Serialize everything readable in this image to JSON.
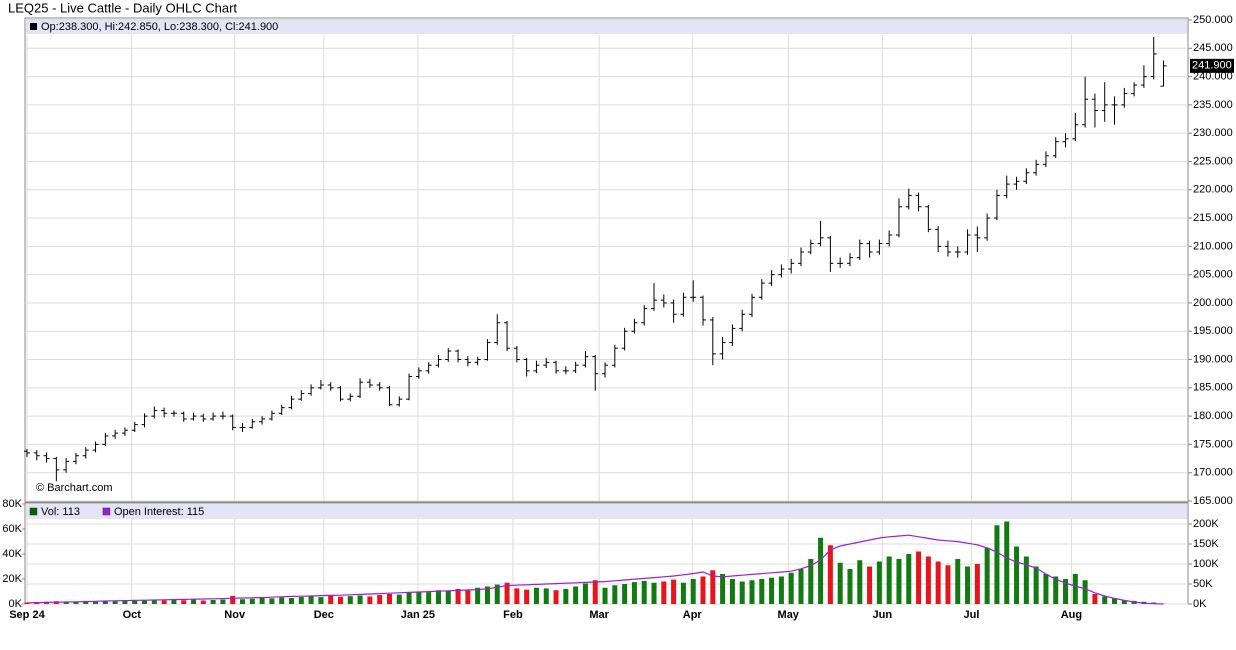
{
  "chart_data": [
    {
      "type": "ohlc",
      "title": "LEQ25 - Live Cattle - Daily OHLC Chart",
      "legend": "Op:238.300, Hi:242.850, Lo:238.300, Cl:241.900",
      "watermark": "© Barchart.com",
      "color": "#000000",
      "last_price": {
        "value": 241.9,
        "label": "241.900"
      },
      "xlim": [
        -0.2,
        118.5
      ],
      "xticks": [
        {
          "value": 0,
          "label": "Sep 24"
        },
        {
          "value": 10.7,
          "label": "Oct"
        },
        {
          "value": 21.2,
          "label": "Nov"
        },
        {
          "value": 30.3,
          "label": "Dec"
        },
        {
          "value": 39.9,
          "label": "Jan 25"
        },
        {
          "value": 49.6,
          "label": "Feb"
        },
        {
          "value": 58.4,
          "label": "Mar"
        },
        {
          "value": 67.9,
          "label": "Apr"
        },
        {
          "value": 77.7,
          "label": "May"
        },
        {
          "value": 87.3,
          "label": "Jun"
        },
        {
          "value": 96.4,
          "label": "Jul"
        },
        {
          "value": 106.6,
          "label": "Aug"
        }
      ],
      "ylim": [
        165,
        250
      ],
      "yticks": [
        {
          "value": 165,
          "label": "165.000"
        },
        {
          "value": 170,
          "label": "170.000"
        },
        {
          "value": 175,
          "label": "175.000"
        },
        {
          "value": 180,
          "label": "180.000"
        },
        {
          "value": 185,
          "label": "185.000"
        },
        {
          "value": 190,
          "label": "190.000"
        },
        {
          "value": 195,
          "label": "195.000"
        },
        {
          "value": 200,
          "label": "200.000"
        },
        {
          "value": 205,
          "label": "205.000"
        },
        {
          "value": 210,
          "label": "210.000"
        },
        {
          "value": 215,
          "label": "215.000"
        },
        {
          "value": 220,
          "label": "220.000"
        },
        {
          "value": 225,
          "label": "225.000"
        },
        {
          "value": 230,
          "label": "230.000"
        },
        {
          "value": 235,
          "label": "235.000"
        },
        {
          "value": 240,
          "label": "240.000"
        },
        {
          "value": 245,
          "label": "245.000"
        },
        {
          "value": 250,
          "label": "250.000"
        }
      ],
      "ohlc": [
        [
          173.8,
          174.2,
          172.8,
          173.5
        ],
        [
          173.5,
          174,
          172.2,
          173
        ],
        [
          173,
          173.6,
          171.8,
          172.5
        ],
        [
          172.5,
          172.8,
          168.5,
          170.5
        ],
        [
          170.5,
          172.6,
          170,
          172
        ],
        [
          172,
          173.5,
          171.5,
          173
        ],
        [
          173,
          174.5,
          172.5,
          174
        ],
        [
          174,
          175.5,
          173.6,
          175
        ],
        [
          175,
          177,
          174.7,
          176.5
        ],
        [
          176.5,
          177.6,
          176,
          177
        ],
        [
          177,
          178,
          176.5,
          177.5
        ],
        [
          177.5,
          179,
          177.2,
          178.5
        ],
        [
          178.5,
          180.5,
          178,
          180
        ],
        [
          180,
          181.7,
          179.6,
          181
        ],
        [
          181,
          181.5,
          179.8,
          180.5
        ],
        [
          180.5,
          181,
          179.9,
          180.5
        ],
        [
          180.5,
          180.8,
          179,
          179.5
        ],
        [
          179.5,
          180.6,
          179.2,
          180
        ],
        [
          180,
          180.4,
          179,
          179.5
        ],
        [
          179.5,
          180.6,
          179.2,
          180
        ],
        [
          180,
          180.8,
          179.4,
          180
        ],
        [
          180,
          180.3,
          177.5,
          178
        ],
        [
          178,
          178.8,
          177.2,
          178
        ],
        [
          178,
          179.5,
          177.8,
          179
        ],
        [
          179,
          180,
          178.5,
          179.5
        ],
        [
          179.5,
          181,
          179.2,
          180.5
        ],
        [
          180.5,
          182,
          180.2,
          181.5
        ],
        [
          181.5,
          183.6,
          181.2,
          183
        ],
        [
          183,
          184.6,
          182.7,
          184
        ],
        [
          184,
          185.6,
          183.6,
          185
        ],
        [
          185,
          186.4,
          184.7,
          185.5
        ],
        [
          185.5,
          186,
          184.5,
          185
        ],
        [
          185,
          185.3,
          182.6,
          183
        ],
        [
          183,
          184,
          182.6,
          183.5
        ],
        [
          183.5,
          186.7,
          183.2,
          186
        ],
        [
          186,
          186.6,
          185,
          185.5
        ],
        [
          185.5,
          186,
          184.5,
          185
        ],
        [
          185,
          185.3,
          181.8,
          182
        ],
        [
          182,
          183.5,
          181.7,
          183
        ],
        [
          183,
          187.5,
          182.8,
          187
        ],
        [
          187,
          188.6,
          186.6,
          188
        ],
        [
          188,
          189.5,
          187.5,
          189
        ],
        [
          189,
          190.8,
          188.6,
          190
        ],
        [
          190,
          192,
          189.6,
          191.5
        ],
        [
          191.5,
          191.8,
          189.5,
          190
        ],
        [
          190,
          190.6,
          188.8,
          189.5
        ],
        [
          189.5,
          190.5,
          189,
          190
        ],
        [
          190,
          193.6,
          189.8,
          193
        ],
        [
          193,
          198,
          192.6,
          196.5
        ],
        [
          196.5,
          196.8,
          191.5,
          192
        ],
        [
          192,
          192.4,
          189.5,
          190
        ],
        [
          190,
          190.3,
          187,
          188
        ],
        [
          188,
          189.8,
          187.6,
          189
        ],
        [
          189,
          190.3,
          188.5,
          189.5
        ],
        [
          189.5,
          189.8,
          187.5,
          188
        ],
        [
          188,
          188.8,
          187.4,
          188
        ],
        [
          188,
          189.6,
          187.6,
          189
        ],
        [
          189,
          191.5,
          188.6,
          190.5
        ],
        [
          190.5,
          190.8,
          184.5,
          187.5
        ],
        [
          187.5,
          189.5,
          186.8,
          189
        ],
        [
          189,
          192.6,
          188.6,
          192
        ],
        [
          192,
          195.6,
          191.6,
          195
        ],
        [
          195,
          197.2,
          194.6,
          196.5
        ],
        [
          196.5,
          199.6,
          196,
          199
        ],
        [
          199,
          203.5,
          198.6,
          200.5
        ],
        [
          200.5,
          201.5,
          199.2,
          200
        ],
        [
          200,
          200.6,
          196.5,
          198
        ],
        [
          198,
          201.8,
          197.6,
          201
        ],
        [
          201,
          204,
          200.2,
          201
        ],
        [
          201,
          201.3,
          196,
          197
        ],
        [
          197,
          197.5,
          189,
          191
        ],
        [
          191,
          194,
          190,
          193
        ],
        [
          193,
          196.2,
          192.4,
          195.5
        ],
        [
          195.5,
          198.8,
          195,
          198
        ],
        [
          198,
          201.6,
          197.5,
          201
        ],
        [
          201,
          204.2,
          200.6,
          203.5
        ],
        [
          203.5,
          205.8,
          203,
          205
        ],
        [
          205,
          206.8,
          204.5,
          206
        ],
        [
          206,
          207.8,
          205.2,
          207
        ],
        [
          207,
          209.8,
          206.5,
          209
        ],
        [
          209,
          211.2,
          208.6,
          210.5
        ],
        [
          210.5,
          214.5,
          210,
          211.5
        ],
        [
          211.5,
          211.8,
          205.5,
          207
        ],
        [
          207,
          208,
          206.2,
          207
        ],
        [
          207,
          208.8,
          206.5,
          208
        ],
        [
          208,
          211.2,
          207.6,
          210.5
        ],
        [
          210.5,
          211,
          208,
          209
        ],
        [
          209,
          211.2,
          208.5,
          210.5
        ],
        [
          210.5,
          212.8,
          210,
          212
        ],
        [
          212,
          218.5,
          211.6,
          217
        ],
        [
          217,
          220.2,
          216.5,
          219
        ],
        [
          219,
          219.5,
          216.2,
          217
        ],
        [
          217,
          217.3,
          212.5,
          213
        ],
        [
          213,
          213.6,
          209,
          210
        ],
        [
          210,
          211,
          208.2,
          209
        ],
        [
          209,
          210,
          208,
          209
        ],
        [
          209,
          213,
          208.5,
          212
        ],
        [
          212,
          213.5,
          209,
          211.5
        ],
        [
          211.5,
          215.8,
          211,
          215
        ],
        [
          215,
          220,
          214.6,
          219
        ],
        [
          219,
          222.5,
          218.5,
          221
        ],
        [
          221,
          222.3,
          220,
          221.5
        ],
        [
          221.5,
          223.8,
          221,
          223
        ],
        [
          223,
          225.3,
          222.5,
          224.5
        ],
        [
          224.5,
          226.8,
          224,
          226
        ],
        [
          226,
          229.3,
          225.6,
          228.5
        ],
        [
          228.5,
          230,
          227.5,
          229
        ],
        [
          229,
          233.6,
          228.6,
          231.5
        ],
        [
          231.5,
          240,
          231,
          236
        ],
        [
          236,
          237,
          231,
          234
        ],
        [
          234,
          239,
          232,
          235
        ],
        [
          235,
          236.5,
          231.5,
          235
        ],
        [
          235,
          238,
          234.5,
          237
        ],
        [
          237,
          239,
          236.5,
          238.5
        ],
        [
          238.5,
          242,
          238,
          240
        ],
        [
          240,
          247,
          239.5,
          244
        ],
        [
          238.3,
          242.85,
          238.3,
          241.9
        ]
      ]
    },
    {
      "type": "bar",
      "ylim": [
        0,
        80000
      ],
      "yticks": [
        {
          "value": 0,
          "label": "0K"
        },
        {
          "value": 20000,
          "label": "20K"
        },
        {
          "value": 40000,
          "label": "40K"
        },
        {
          "value": 60000,
          "label": "60K"
        },
        {
          "value": 80000,
          "label": "80K"
        }
      ],
      "y2lim": [
        0,
        250000
      ],
      "y2ticks": [
        {
          "value": 0,
          "label": "0K"
        },
        {
          "value": 50000,
          "label": "50K"
        },
        {
          "value": 100000,
          "label": "100K"
        },
        {
          "value": 150000,
          "label": "150K"
        },
        {
          "value": 200000,
          "label": "200K"
        }
      ],
      "series": [
        {
          "name": "Vol: 113",
          "color": "#006400",
          "up_color": "#117a11",
          "down_color": "#e8141b",
          "values": [
            1200,
            1500,
            1800,
            2200,
            1600,
            2000,
            2500,
            2300,
            2800,
            2600,
            3000,
            2700,
            3100,
            3400,
            2900,
            3300,
            3000,
            3600,
            2800,
            3200,
            3500,
            6500,
            3800,
            4200,
            5000,
            4500,
            5200,
            4800,
            5600,
            6000,
            5500,
            7000,
            5800,
            6300,
            6800,
            6000,
            7200,
            8000,
            7500,
            9000,
            10000,
            9500,
            11000,
            10500,
            12000,
            11500,
            13000,
            14000,
            15500,
            17000,
            12500,
            11500,
            13000,
            12500,
            11000,
            12000,
            14000,
            16500,
            19000,
            13000,
            15000,
            16000,
            17500,
            18500,
            17000,
            18000,
            19500,
            17000,
            20000,
            22000,
            27000,
            24000,
            20000,
            18000,
            19000,
            20000,
            21000,
            22000,
            25000,
            28000,
            36000,
            53000,
            47000,
            33000,
            28000,
            35000,
            30000,
            34000,
            38000,
            36000,
            40000,
            42000,
            38000,
            34000,
            31000,
            36000,
            30000,
            32000,
            45000,
            63000,
            66000,
            46000,
            38000,
            30000,
            24000,
            22000,
            20000,
            24000,
            19000,
            8000,
            6000,
            4500,
            3000,
            2500,
            1800,
            1200,
            113
          ]
        },
        {
          "name": "Open Interest: 115",
          "color": "#9b1fd8",
          "axis": "y2",
          "values": [
            3000,
            3500,
            4000,
            4500,
            5000,
            5500,
            6000,
            6800,
            7500,
            8000,
            8500,
            9000,
            9500,
            10000,
            10500,
            11000,
            11500,
            12000,
            12500,
            13000,
            13500,
            14500,
            15000,
            15500,
            16000,
            17000,
            18000,
            19000,
            19500,
            20000,
            21000,
            21500,
            22000,
            23000,
            24000,
            25000,
            26000,
            27000,
            28000,
            29000,
            30000,
            31000,
            32000,
            33000,
            34000,
            35000,
            36000,
            38000,
            42000,
            46000,
            47000,
            48000,
            49000,
            50000,
            51000,
            52000,
            53000,
            54000,
            55000,
            56000,
            58000,
            60000,
            62000,
            64000,
            66000,
            68000,
            70000,
            73000,
            76000,
            80000,
            70000,
            68000,
            70000,
            72000,
            74000,
            76000,
            78000,
            80000,
            82000,
            88000,
            96000,
            110000,
            135000,
            145000,
            150000,
            155000,
            160000,
            165000,
            168000,
            170000,
            172000,
            168000,
            164000,
            160000,
            158000,
            156000,
            152000,
            148000,
            140000,
            130000,
            115000,
            105000,
            98000,
            90000,
            75000,
            62000,
            52000,
            45000,
            38000,
            28000,
            20000,
            14000,
            9000,
            5000,
            2000,
            800,
            115
          ]
        }
      ]
    }
  ]
}
